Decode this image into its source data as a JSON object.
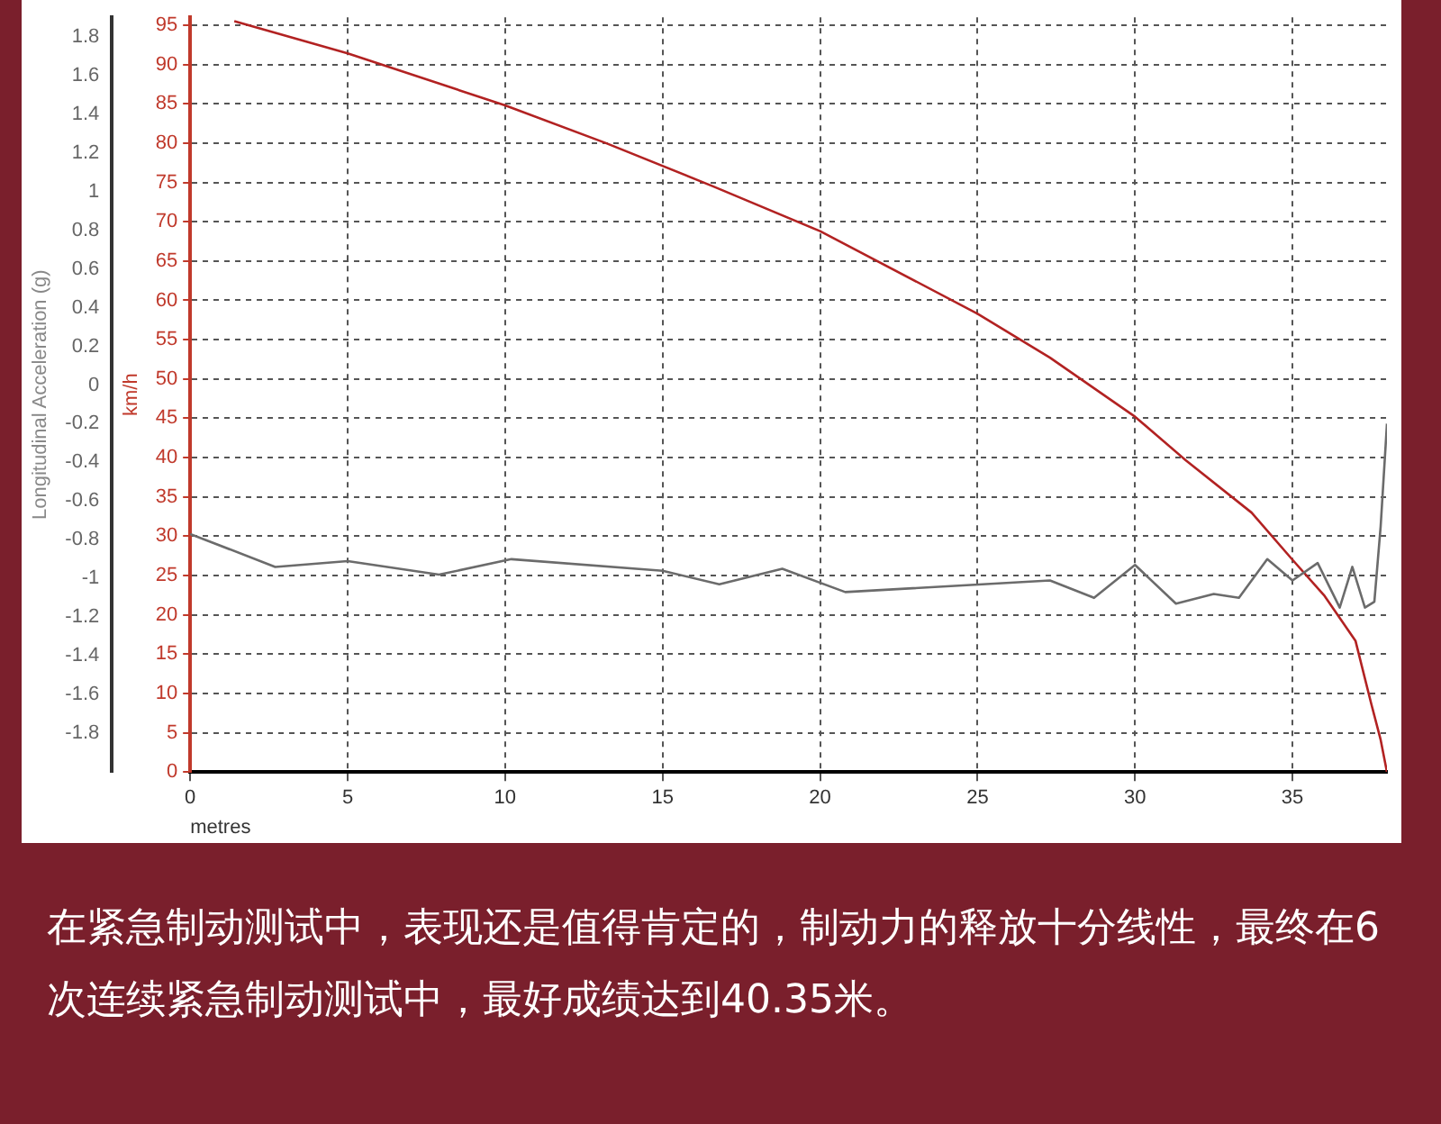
{
  "chart_data": {
    "type": "line",
    "xlabel": "metres",
    "ylabel": "Longitudinal Acceleration (g)",
    "y2label": "km/h",
    "xlim": [
      0,
      38
    ],
    "xticks": [
      0,
      5,
      10,
      15,
      20,
      25,
      30,
      35
    ],
    "ylim": [
      -2,
      1.9
    ],
    "yticks": [
      -1.8,
      -1.6,
      -1.4,
      -1.2,
      -1,
      -0.8,
      -0.6,
      -0.4,
      -0.2,
      0,
      0.2,
      0.4,
      0.6,
      0.8,
      1,
      1.2,
      1.4,
      1.6,
      1.8
    ],
    "y2lim": [
      0,
      96
    ],
    "y2ticks": [
      0,
      5,
      10,
      15,
      20,
      25,
      30,
      35,
      40,
      45,
      50,
      55,
      60,
      65,
      70,
      75,
      80,
      85,
      90,
      95
    ],
    "grid": true,
    "legend": false,
    "marker": "none",
    "line_style": "solid",
    "series": [
      {
        "color": "#6b6b6b",
        "axis": "y",
        "x": [
          0,
          2.7,
          5,
          7.9,
          10.2,
          15,
          16.8,
          18.8,
          20.8,
          27.3,
          28.7,
          30,
          31.3,
          32.5,
          33.3,
          34.2,
          35,
          35.8,
          36.5,
          36.9,
          37.3,
          37.6,
          37.8,
          38
        ],
        "values": [
          -0.77,
          -0.94,
          -0.91,
          -0.98,
          -0.9,
          -0.96,
          -1.03,
          -0.95,
          -1.07,
          -1.01,
          -1.1,
          -0.93,
          -1.13,
          -1.08,
          -1.1,
          -0.9,
          -1.01,
          -0.92,
          -1.15,
          -0.94,
          -1.15,
          -1.12,
          -0.73,
          -0.2
        ]
      },
      {
        "color": "#b22222",
        "axis": "y2",
        "x": [
          1.4,
          5,
          10,
          13.2,
          16.6,
          20,
          25,
          27.3,
          30,
          31.6,
          33.7,
          35,
          36,
          37,
          37.5,
          37.8,
          38
        ],
        "values": [
          95.5,
          91.4,
          84.8,
          80,
          74.5,
          68.8,
          58.3,
          52.7,
          45.2,
          39.7,
          33,
          27,
          22.5,
          16.7,
          8.7,
          4.1,
          0
        ]
      }
    ],
    "annotations": [
      "在紧急制动测试中，表现还是值得肯定的，制动力的释放十分线性，最终在6次连续紧急制动测试中，最好成绩达到40.35米。"
    ]
  }
}
